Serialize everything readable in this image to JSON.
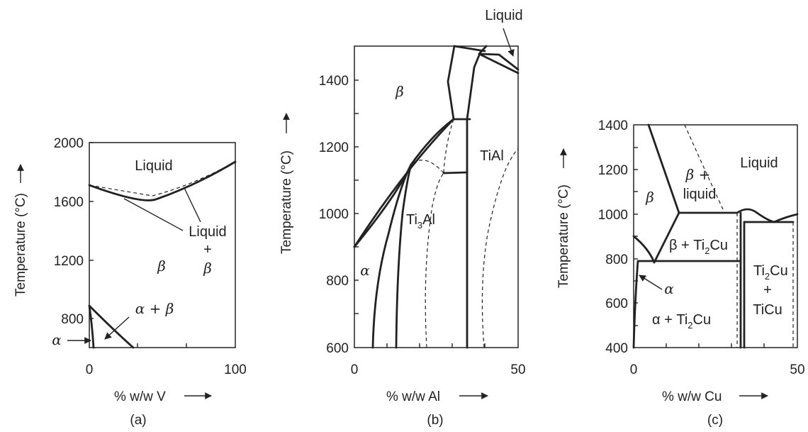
{
  "panels": [
    {
      "id": "a",
      "caption": "(a)",
      "ylabel": "Temperature (°C)",
      "xlabel": "% w/w V",
      "yticks": [
        "2000",
        "1600",
        "1200",
        "800"
      ],
      "xticks": [
        "0",
        "100"
      ],
      "regions": {
        "liquid": "Liquid",
        "beta": "β",
        "alpha_beta": "α + β",
        "alpha": "α"
      },
      "callout": {
        "line1": "Liquid",
        "line2": "+",
        "line3": "β"
      }
    },
    {
      "id": "b",
      "caption": "(b)",
      "ylabel": "Temperature (°C)",
      "xlabel": "% w/w Al",
      "yticks": [
        "1400",
        "1200",
        "1000",
        "800",
        "600"
      ],
      "xticks": [
        "0",
        "50"
      ],
      "regions": {
        "liquid": "Liquid",
        "beta": "β",
        "tial": "TiAl",
        "ti3al_main": "Ti",
        "ti3al_sub": "3",
        "ti3al_end": "Al",
        "alpha": "α"
      }
    },
    {
      "id": "c",
      "caption": "(c)",
      "ylabel": "Temperature (°C)",
      "xlabel": "% w/w Cu",
      "yticks": [
        "1400",
        "1200",
        "1000",
        "800",
        "600",
        "400"
      ],
      "xticks": [
        "0",
        "50"
      ],
      "regions": {
        "liquid": "Liquid",
        "beta": "β",
        "beta_liquid_1": "β +",
        "beta_liquid_2": "liquid",
        "beta_ti2cu": "β + Ti",
        "alpha": "α",
        "alpha_ti2cu": "α + Ti",
        "sub2": "2",
        "cu": "Cu",
        "ti2cu_1": "Ti",
        "ti2cu_plus": "+",
        "ticu": "TiCu"
      }
    }
  ]
}
